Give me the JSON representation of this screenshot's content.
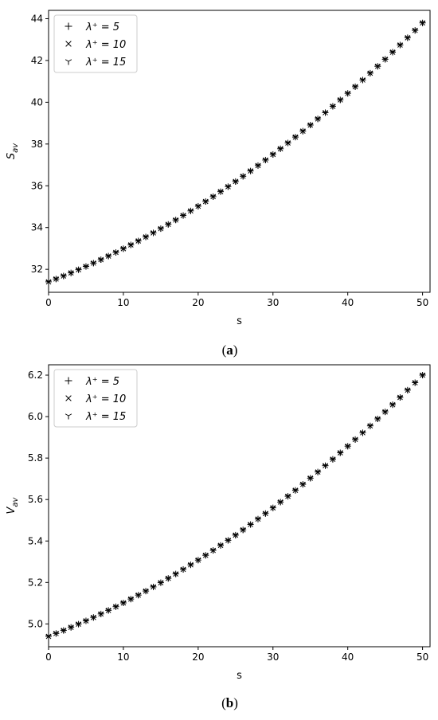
{
  "chart_data": [
    {
      "type": "scatter",
      "xlabel": "s",
      "ylabel_main": "S",
      "ylabel_sub": "av",
      "xlim": [
        0,
        51
      ],
      "ylim": [
        30.9,
        44.4
      ],
      "xticks": [
        0,
        10,
        20,
        30,
        40,
        50
      ],
      "yticks": [
        32,
        34,
        36,
        38,
        40,
        42,
        44
      ],
      "tick_format": "integer",
      "legend_position": "top-left",
      "caption_open": "(",
      "caption_letter": "a",
      "caption_close": ")",
      "x_start": 0,
      "x_end": 50,
      "y_start": 31.4,
      "y_end": 43.8,
      "series": [
        {
          "name": "λ⁺ = 5",
          "marker": "plus"
        },
        {
          "name": "λ⁺ = 10",
          "marker": "x"
        },
        {
          "name": "λ⁺ = 15",
          "marker": "tri_down"
        }
      ]
    },
    {
      "type": "scatter",
      "xlabel": "s",
      "ylabel_main": "V",
      "ylabel_sub": "av",
      "xlim": [
        0,
        51
      ],
      "ylim": [
        4.89,
        6.25
      ],
      "xticks": [
        0,
        10,
        20,
        30,
        40,
        50
      ],
      "yticks": [
        5.0,
        5.2,
        5.4,
        5.6,
        5.8,
        6.0,
        6.2
      ],
      "tick_format": "one_decimal",
      "legend_position": "top-left",
      "caption_open": "(",
      "caption_letter": "b",
      "caption_close": ")",
      "x_start": 0,
      "x_end": 50,
      "y_start": 4.94,
      "y_end": 6.2,
      "series": [
        {
          "name": "λ⁺ = 5",
          "marker": "plus"
        },
        {
          "name": "λ⁺ = 10",
          "marker": "x"
        },
        {
          "name": "λ⁺ = 15",
          "marker": "tri_down"
        }
      ]
    }
  ]
}
